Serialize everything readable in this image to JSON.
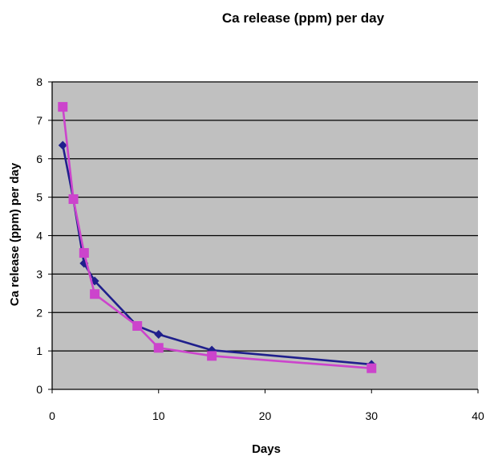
{
  "chart_data": {
    "type": "line",
    "title": "Ca release (ppm) per day",
    "xlabel": "Days",
    "ylabel": "Ca release (ppm) per day",
    "xlim": [
      0,
      40
    ],
    "ylim": [
      0,
      8
    ],
    "x_ticks": [
      "0",
      "10",
      "20",
      "30",
      "40"
    ],
    "y_ticks": [
      "0",
      "1",
      "2",
      "3",
      "4",
      "5",
      "6",
      "7",
      "8"
    ],
    "grid": "horizontal",
    "legend": "none",
    "plot_background": "#c0c0c0",
    "series": [
      {
        "marker": "diamond",
        "color": "#1f1f8c",
        "x": [
          1,
          2,
          3,
          4,
          8,
          10,
          15,
          30
        ],
        "y": [
          6.35,
          4.95,
          3.28,
          2.82,
          1.65,
          1.43,
          1.02,
          0.65
        ]
      },
      {
        "marker": "square",
        "color": "#cc44cc",
        "x": [
          1,
          2,
          3,
          4,
          8,
          10,
          15,
          30
        ],
        "y": [
          7.35,
          4.95,
          3.55,
          2.48,
          1.65,
          1.08,
          0.87,
          0.55
        ]
      }
    ]
  }
}
